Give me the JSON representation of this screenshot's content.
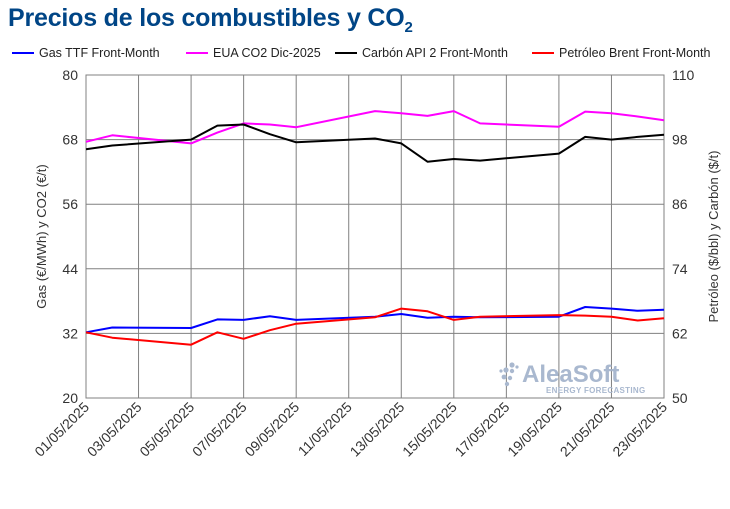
{
  "title": "Precios de los combustibles y CO",
  "title_subscript": "2",
  "watermark": {
    "name": "AleaSoft",
    "tagline": "ENERGY FORECASTING"
  },
  "colors": {
    "title": "#004586",
    "gas": "#0000ff",
    "eua": "#ff00ff",
    "coal": "#000000",
    "brent": "#ff0000",
    "grid": "#808080",
    "watermark": "#a9b8cf"
  },
  "chart_data": {
    "type": "line",
    "x": [
      "01/05/2025",
      "02/05/2025",
      "05/05/2025",
      "06/05/2025",
      "07/05/2025",
      "08/05/2025",
      "09/05/2025",
      "12/05/2025",
      "13/05/2025",
      "14/05/2025",
      "15/05/2025",
      "16/05/2025",
      "19/05/2025",
      "20/05/2025",
      "21/05/2025",
      "22/05/2025",
      "23/05/2025"
    ],
    "x_tick_labels": [
      "01/05/2025",
      "03/05/2025",
      "05/05/2025",
      "07/05/2025",
      "09/05/2025",
      "11/05/2025",
      "13/05/2025",
      "15/05/2025",
      "17/05/2025",
      "19/05/2025",
      "21/05/2025",
      "23/05/2025"
    ],
    "y_left": {
      "label": "Gas (€/MWh) y CO2 (€/t)",
      "lim": [
        20,
        80
      ],
      "ticks": [
        20,
        32,
        44,
        56,
        68,
        80
      ]
    },
    "y_right": {
      "label": "Petróleo ($/bbl) y Carbón ($/t)",
      "lim": [
        50,
        110
      ],
      "ticks": [
        50,
        62,
        74,
        86,
        98,
        110
      ]
    },
    "grid": true,
    "legend_position": "top",
    "series": [
      {
        "name": "Gas TTF Front-Month",
        "axis": "left",
        "color": "#0000ff",
        "values": [
          32.2,
          33.1,
          33.0,
          34.6,
          34.5,
          35.2,
          34.5,
          35.1,
          35.6,
          34.9,
          35.1,
          35.0,
          35.1,
          36.9,
          36.6,
          36.2,
          36.4
        ]
      },
      {
        "name": "EUA CO2 Dic-2025",
        "axis": "left",
        "color": "#ff00ff",
        "values": [
          67.6,
          68.8,
          67.3,
          69.3,
          71.0,
          70.8,
          70.3,
          73.3,
          72.9,
          72.4,
          73.3,
          71.0,
          70.4,
          73.2,
          72.9,
          72.3,
          71.6
        ]
      },
      {
        "name": "Carbón API 2 Front-Month",
        "axis": "right",
        "color": "#000000",
        "values": [
          96.2,
          96.9,
          98.0,
          100.6,
          100.8,
          99.0,
          97.5,
          98.2,
          97.3,
          93.9,
          94.4,
          94.1,
          95.4,
          98.5,
          98.0,
          98.5,
          98.9
        ]
      },
      {
        "name": "Petróleo Brent Front-Month",
        "axis": "right",
        "color": "#ff0000",
        "values": [
          62.2,
          61.2,
          59.9,
          62.2,
          61.0,
          62.6,
          63.8,
          65.0,
          66.6,
          66.1,
          64.5,
          65.1,
          65.4,
          65.3,
          65.1,
          64.4,
          64.8
        ]
      }
    ]
  }
}
